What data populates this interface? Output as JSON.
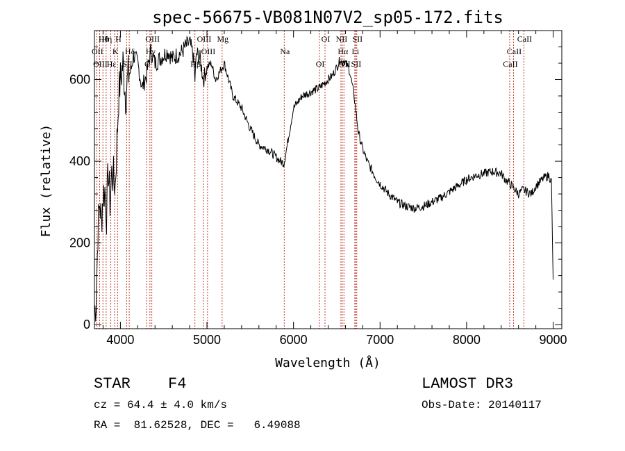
{
  "chart_data": {
    "type": "line",
    "title": "spec-56675-VB081N07V2_sp05-172.fits",
    "xlabel": "Wavelength (Å)",
    "ylabel": "Flux (relative)",
    "xlim": [
      3700,
      9100
    ],
    "ylim": [
      -10,
      720
    ],
    "x_ticks": [
      4000,
      5000,
      6000,
      7000,
      8000,
      9000
    ],
    "y_ticks": [
      0,
      200,
      400,
      600
    ],
    "grid": false,
    "series": [
      {
        "name": "flux",
        "x": [
          3700,
          3720,
          3740,
          3760,
          3780,
          3800,
          3820,
          3840,
          3860,
          3880,
          3900,
          3920,
          3940,
          3960,
          3980,
          4000,
          4030,
          4060,
          4090,
          4120,
          4150,
          4200,
          4250,
          4300,
          4350,
          4400,
          4450,
          4500,
          4550,
          4600,
          4650,
          4700,
          4750,
          4800,
          4840,
          4861,
          4880,
          4920,
          4960,
          5000,
          5050,
          5100,
          5150,
          5200,
          5300,
          5400,
          5500,
          5600,
          5700,
          5800,
          5850,
          5890,
          5920,
          5950,
          6000,
          6100,
          6200,
          6300,
          6400,
          6450,
          6500,
          6540,
          6563,
          6580,
          6620,
          6650,
          6700,
          6750,
          6800,
          6850,
          6900,
          6950,
          7000,
          7100,
          7200,
          7300,
          7400,
          7500,
          7600,
          7700,
          7800,
          7900,
          8000,
          8100,
          8200,
          8300,
          8400,
          8450,
          8500,
          8560,
          8600,
          8650,
          8700,
          8750,
          8800,
          8850,
          8900,
          8950,
          8980,
          9000
        ],
        "y": [
          30,
          60,
          230,
          300,
          250,
          320,
          330,
          270,
          380,
          300,
          370,
          360,
          340,
          450,
          560,
          600,
          640,
          560,
          610,
          620,
          660,
          640,
          580,
          610,
          670,
          640,
          650,
          660,
          670,
          650,
          660,
          665,
          680,
          690,
          660,
          600,
          665,
          650,
          600,
          630,
          640,
          600,
          620,
          640,
          560,
          530,
          480,
          440,
          430,
          410,
          400,
          395,
          430,
          470,
          530,
          560,
          570,
          580,
          600,
          610,
          630,
          650,
          640,
          650,
          635,
          620,
          560,
          470,
          430,
          400,
          380,
          360,
          345,
          320,
          300,
          290,
          285,
          290,
          300,
          310,
          325,
          340,
          355,
          365,
          370,
          375,
          370,
          355,
          345,
          330,
          320,
          330,
          325,
          320,
          340,
          350,
          360,
          365,
          350,
          110
        ]
      }
    ],
    "spectral_lines": [
      {
        "label": "Hθ",
        "x": 3798
      },
      {
        "label": "OII",
        "x": 3727
      },
      {
        "label": "OIII",
        "x": 3760
      },
      {
        "label": "Hη",
        "x": 3835
      },
      {
        "label": "K",
        "x": 3934
      },
      {
        "label": "Hε",
        "x": 3889
      },
      {
        "label": "H",
        "x": 3968
      },
      {
        "label": "Hδ",
        "x": 4102
      },
      {
        "label": "SII",
        "x": 4072
      },
      {
        "label": "OIII",
        "x": 4363
      },
      {
        "label": "Hγ",
        "x": 4341
      },
      {
        "label": "G",
        "x": 4304
      },
      {
        "label": "OIII",
        "x": 4959
      },
      {
        "label": "OIII",
        "x": 5007
      },
      {
        "label": "Hβ",
        "x": 4861
      },
      {
        "label": "Mg",
        "x": 5175
      },
      {
        "label": "Na",
        "x": 5893
      },
      {
        "label": "OI",
        "x": 6300
      },
      {
        "label": "OI",
        "x": 6364
      },
      {
        "label": "Hα",
        "x": 6563
      },
      {
        "label": "SII",
        "x": 6716
      },
      {
        "label": "NII",
        "x": 6548
      },
      {
        "label": "Li",
        "x": 6708
      },
      {
        "label": "NII",
        "x": 6583
      },
      {
        "label": "SII",
        "x": 6731
      },
      {
        "label": "CaII",
        "x": 8542
      },
      {
        "label": "CaII",
        "x": 8498
      },
      {
        "label": "CaII",
        "x": 8662
      }
    ]
  },
  "info": {
    "class_label": "STAR",
    "subclass": "F4",
    "survey": "LAMOST DR3",
    "redshift_line": "cz = 64.4 ± 4.0 km/s",
    "obs_date_line": "Obs-Date: 20140117",
    "coords_line": "RA =  81.62528, DEC =   6.49088"
  }
}
